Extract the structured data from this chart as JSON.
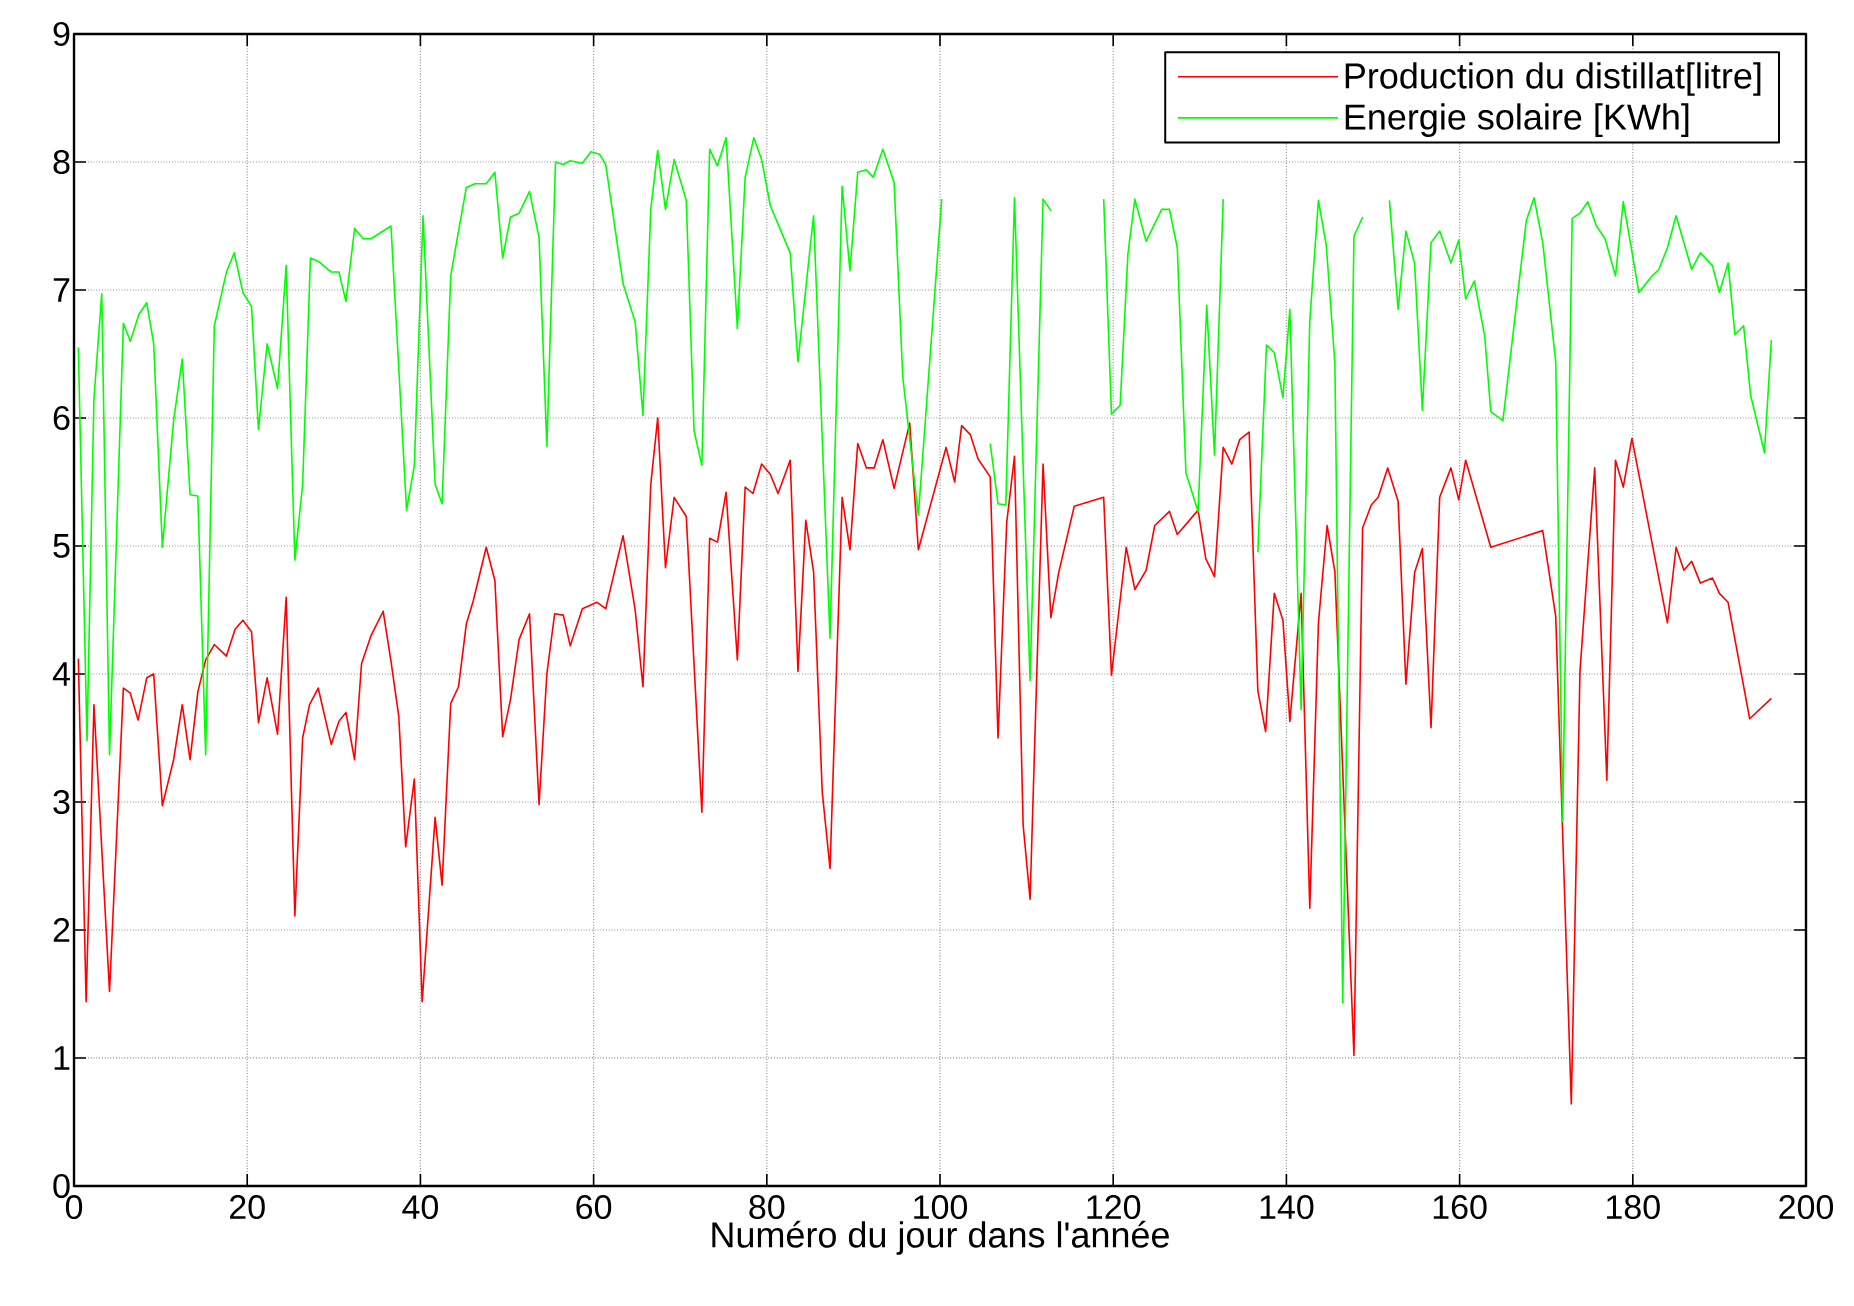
{
  "chart_data": {
    "type": "line",
    "xlabel": "Numéro du jour dans l'année",
    "xlim": [
      0,
      200
    ],
    "xticks": [
      0,
      20,
      40,
      60,
      80,
      100,
      120,
      140,
      160,
      180,
      200
    ],
    "ylim": [
      0,
      9
    ],
    "yticks": [
      0,
      1,
      2,
      3,
      4,
      5,
      6,
      7,
      8,
      9
    ],
    "grid": true,
    "legend": "top right",
    "line_style": "solid",
    "marker": "none",
    "series": [
      {
        "name": "Production du distillat[litre]",
        "color": "#ff0000",
        "x": [
          0.5,
          1.4,
          2.3,
          4.1,
          5.7,
          6.5,
          7.4,
          8.4,
          9.2,
          10.2,
          11.5,
          12.5,
          13.4,
          14.3,
          15.2,
          16.2,
          17.6,
          18.6,
          19.5,
          20.5,
          21.3,
          22.3,
          23.5,
          24.5,
          25.5,
          26.4,
          27.2,
          28.2,
          29.7,
          30.6,
          31.4,
          32.4,
          33.2,
          34.3,
          35.7,
          36.6,
          37.5,
          38.3,
          39.3,
          40.2,
          41.7,
          42.5,
          43.5,
          44.4,
          45.3,
          46.1,
          47.6,
          48.6,
          49.5,
          50.4,
          51.4,
          52.6,
          53.7,
          54.6,
          55.5,
          56.5,
          57.3,
          58.7,
          60.4,
          61.4,
          63.4,
          64.8,
          65.7,
          66.6,
          67.4,
          68.3,
          69.3,
          70.7,
          72.5,
          73.4,
          74.3,
          75.3,
          76.6,
          77.5,
          78.4,
          79.4,
          80.4,
          81.3,
          82.7,
          83.6,
          84.5,
          85.4,
          86.4,
          87.3,
          88.7,
          89.6,
          90.5,
          91.5,
          92.4,
          93.4,
          94.7,
          96.5,
          97.5,
          100.7,
          101.7,
          102.5,
          103.5,
          104.4,
          105.8,
          106.7,
          107.7,
          108.6,
          109.6,
          110.4,
          111.9,
          112.8,
          113.7,
          115.5,
          118.9,
          119.8,
          121.5,
          122.5,
          123.8,
          124.8,
          126.5,
          127.4,
          129.8,
          130.7,
          131.7,
          132.7,
          133.7,
          134.6,
          135.7,
          136.7,
          137.6,
          138.6,
          139.6,
          140.4,
          141.7,
          142.7,
          143.7,
          144.7,
          145.6,
          147.8,
          148.8,
          149.8,
          150.6,
          151.7,
          152.9,
          153.8,
          154.8,
          155.7,
          156.7,
          157.7,
          159.0,
          159.9,
          160.7,
          163.6,
          169.6,
          171.1,
          172.9,
          173.9,
          175.6,
          177.0,
          178.0,
          178.9,
          179.9,
          184.0,
          185.0,
          185.9,
          186.8,
          187.8,
          189.2,
          190.0,
          191.0,
          193.5,
          196.0
        ],
        "values": [
          4.12,
          1.44,
          3.76,
          1.52,
          3.89,
          3.85,
          3.64,
          3.97,
          4.0,
          2.97,
          3.33,
          3.76,
          3.33,
          3.86,
          4.11,
          4.23,
          4.14,
          4.35,
          4.42,
          4.33,
          3.62,
          3.97,
          3.53,
          4.6,
          2.11,
          3.5,
          3.76,
          3.89,
          3.45,
          3.63,
          3.7,
          3.33,
          4.08,
          4.3,
          4.49,
          4.1,
          3.67,
          2.65,
          3.18,
          1.44,
          2.88,
          2.35,
          3.77,
          3.9,
          4.39,
          4.57,
          4.99,
          4.73,
          3.51,
          3.8,
          4.27,
          4.47,
          2.98,
          4.0,
          4.47,
          4.46,
          4.22,
          4.51,
          4.56,
          4.51,
          5.08,
          4.5,
          3.9,
          5.48,
          6.0,
          4.83,
          5.38,
          5.23,
          2.92,
          5.06,
          5.03,
          5.42,
          4.11,
          5.46,
          5.41,
          5.64,
          5.56,
          5.41,
          5.67,
          4.02,
          5.2,
          4.8,
          3.08,
          2.48,
          5.38,
          4.97,
          5.8,
          5.61,
          5.61,
          5.83,
          5.45,
          5.96,
          4.97,
          5.77,
          5.5,
          5.94,
          5.87,
          5.68,
          5.54,
          3.5,
          5.18,
          5.7,
          2.82,
          2.24,
          5.64,
          4.44,
          4.79,
          5.31,
          5.38,
          3.99,
          4.99,
          4.66,
          4.81,
          5.16,
          5.27,
          5.09,
          5.28,
          4.9,
          4.76,
          5.77,
          5.64,
          5.83,
          5.89,
          3.87,
          3.55,
          4.63,
          4.42,
          3.63,
          4.63,
          2.17,
          4.4,
          5.16,
          4.8,
          1.02,
          5.14,
          5.32,
          5.38,
          5.61,
          5.35,
          3.92,
          4.79,
          4.98,
          3.58,
          5.38,
          5.61,
          5.36,
          5.67,
          4.99,
          5.12,
          4.45,
          0.64,
          4.02,
          5.61,
          3.17,
          5.67,
          5.46,
          5.84,
          4.4,
          4.99,
          4.81,
          4.88,
          4.71,
          4.75,
          4.63,
          4.56,
          3.65,
          3.81
        ]
      },
      {
        "name": "Energie solaire [KWh]",
        "color": "#00ff00",
        "x": [
          0.5,
          1.5,
          2.3,
          3.2,
          4.1,
          5.7,
          6.5,
          7.5,
          8.4,
          9.2,
          10.2,
          11.5,
          12.5,
          13.4,
          14.3,
          15.2,
          16.2,
          17.6,
          18.5,
          19.5,
          20.5,
          21.3,
          22.3,
          23.5,
          24.5,
          25.5,
          26.4,
          27.3,
          28.3,
          29.7,
          30.6,
          31.4,
          32.4,
          33.4,
          34.3,
          36.6,
          38.4,
          39.3,
          40.3,
          41.7,
          42.5,
          43.5,
          44.4,
          45.3,
          46.3,
          47.6,
          48.6,
          49.5,
          50.4,
          51.4,
          52.6,
          53.7,
          54.6,
          55.6,
          56.5,
          57.3,
          58.7,
          59.7,
          60.7,
          61.4,
          63.4,
          64.8,
          65.7,
          66.6,
          67.4,
          68.3,
          69.3,
          70.7,
          71.6,
          72.5,
          73.4,
          74.3,
          75.3,
          76.6,
          77.5,
          78.5,
          79.4,
          80.4,
          82.7,
          83.6,
          85.4,
          87.3,
          88.7,
          89.6,
          90.5,
          91.5,
          92.3,
          93.4,
          94.7,
          95.7,
          97.5,
          100.2,
          103.0,
          105.8,
          106.7,
          107.6,
          108.6,
          110.4,
          111.9,
          112.8,
          116.0,
          118.9,
          119.8,
          120.8,
          121.7,
          122.5,
          123.8,
          125.6,
          126.5,
          127.4,
          128.4,
          129.8,
          130.8,
          131.7,
          132.7,
          134.5,
          136.7,
          137.7,
          138.6,
          139.6,
          140.4,
          141.7,
          142.7,
          143.7,
          144.6,
          145.6,
          146.5,
          147.8,
          148.8,
          150.3,
          151.9,
          152.9,
          153.8,
          154.8,
          155.7,
          156.7,
          157.7,
          159.0,
          159.9,
          160.7,
          161.7,
          162.9,
          163.6,
          165.0,
          167.7,
          168.6,
          169.6,
          171.1,
          171.9,
          173.0,
          173.9,
          174.8,
          175.8,
          176.8,
          178.0,
          178.9,
          179.9,
          180.7,
          182.1,
          183.0,
          184.0,
          185.0,
          186.8,
          187.8,
          189.2,
          190.0,
          191.0,
          191.8,
          192.8,
          193.6,
          195.2,
          196.0
        ],
        "values": [
          6.55,
          3.48,
          6.15,
          6.97,
          3.37,
          6.74,
          6.6,
          6.81,
          6.9,
          6.58,
          4.99,
          5.98,
          6.46,
          5.4,
          5.39,
          3.37,
          6.72,
          7.14,
          7.29,
          6.98,
          6.87,
          5.91,
          6.58,
          6.23,
          7.19,
          4.89,
          5.48,
          7.25,
          7.22,
          7.14,
          7.14,
          6.91,
          7.48,
          7.4,
          7.4,
          7.5,
          5.28,
          5.63,
          7.58,
          5.48,
          5.33,
          7.11,
          7.46,
          7.8,
          7.83,
          7.83,
          7.92,
          7.25,
          7.57,
          7.6,
          7.77,
          7.41,
          5.78,
          8.0,
          7.98,
          8.01,
          7.99,
          8.08,
          8.06,
          7.98,
          7.05,
          6.75,
          6.02,
          7.63,
          8.09,
          7.63,
          8.02,
          7.7,
          5.9,
          5.63,
          8.1,
          7.97,
          8.19,
          6.7,
          7.88,
          8.19,
          8.02,
          7.66,
          7.29,
          6.44,
          7.58,
          4.28,
          7.81,
          7.15,
          7.92,
          7.94,
          7.88,
          8.1,
          7.84,
          6.32,
          5.24,
          7.71,
          null,
          5.8,
          5.33,
          5.32,
          7.72,
          3.95,
          7.71,
          7.62,
          null,
          7.71,
          6.03,
          6.1,
          7.28,
          7.71,
          7.38,
          7.63,
          7.63,
          7.33,
          5.57,
          5.27,
          6.88,
          5.71,
          7.71,
          null,
          4.95,
          6.57,
          6.51,
          6.16,
          6.85,
          3.72,
          6.76,
          7.7,
          7.35,
          6.43,
          1.43,
          7.42,
          7.57,
          null,
          7.7,
          6.85,
          7.46,
          7.21,
          6.06,
          7.37,
          7.46,
          7.21,
          7.39,
          6.93,
          7.07,
          6.64,
          6.05,
          5.98,
          7.54,
          7.72,
          7.37,
          6.44,
          2.85,
          7.56,
          7.6,
          7.69,
          7.5,
          7.4,
          7.11,
          7.69,
          7.3,
          6.98,
          7.1,
          7.16,
          7.33,
          7.58,
          7.16,
          7.29,
          7.19,
          6.98,
          7.21,
          6.65,
          6.72,
          6.18,
          5.73,
          6.61
        ]
      }
    ]
  }
}
